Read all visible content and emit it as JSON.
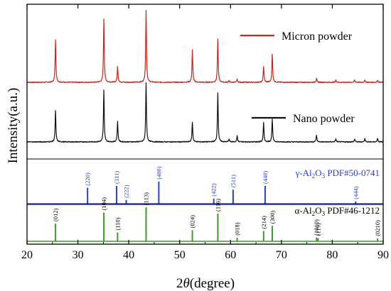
{
  "chart_data": {
    "type": "line",
    "xlabel_prefix": "2",
    "xlabel_theta": "θ",
    "xlabel_unit": "(degree)",
    "ylabel": "Intensity(a.u.)",
    "xlim": [
      20,
      90
    ],
    "xticks": [
      20,
      30,
      40,
      50,
      60,
      70,
      80,
      90
    ],
    "grid": false,
    "series": [
      {
        "name": "Micron powder",
        "color": "#c8281c",
        "baseline": 0.02,
        "peaks": [
          [
            25.6,
            0.58
          ],
          [
            35.1,
            0.86
          ],
          [
            37.8,
            0.22
          ],
          [
            43.4,
            0.98
          ],
          [
            52.5,
            0.44
          ],
          [
            57.5,
            0.58
          ],
          [
            59.7,
            0.02
          ],
          [
            61.3,
            0.04
          ],
          [
            66.5,
            0.22
          ],
          [
            68.2,
            0.38
          ],
          [
            76.9,
            0.05
          ],
          [
            80.7,
            0.03
          ],
          [
            84.4,
            0.03
          ],
          [
            86.4,
            0.03
          ],
          [
            88.9,
            0.03
          ]
        ]
      },
      {
        "name": "Nano powder",
        "color": "#111111",
        "baseline": 0.02,
        "peaks": [
          [
            25.6,
            0.42
          ],
          [
            35.1,
            0.7
          ],
          [
            37.8,
            0.28
          ],
          [
            43.4,
            0.8
          ],
          [
            52.5,
            0.27
          ],
          [
            57.5,
            0.66
          ],
          [
            59.7,
            0.04
          ],
          [
            61.3,
            0.08
          ],
          [
            66.5,
            0.26
          ],
          [
            68.2,
            0.31
          ],
          [
            76.9,
            0.09
          ],
          [
            80.7,
            0.04
          ],
          [
            84.4,
            0.04
          ],
          [
            86.4,
            0.05
          ],
          [
            88.9,
            0.05
          ]
        ]
      }
    ],
    "references": [
      {
        "name_prefix": "γ-Al",
        "name_sub1": "2",
        "name_mid": "O",
        "name_sub2": "3",
        "name_suffix": " PDF#50-0741",
        "color": "#2a3fd4",
        "lines": [
          {
            "x": 31.9,
            "h": 0.45,
            "label": "(220)"
          },
          {
            "x": 37.6,
            "h": 0.5,
            "label": "(311)"
          },
          {
            "x": 39.5,
            "h": 0.12,
            "label": "(222)"
          },
          {
            "x": 45.9,
            "h": 0.62,
            "label": "(400)"
          },
          {
            "x": 56.7,
            "h": 0.16,
            "label": "(422)"
          },
          {
            "x": 60.5,
            "h": 0.4,
            "label": "(511)"
          },
          {
            "x": 66.8,
            "h": 0.5,
            "label": "(440)"
          },
          {
            "x": 84.6,
            "h": 0.08,
            "label": "(444)"
          }
        ]
      },
      {
        "name_prefix": "α-Al",
        "name_sub1": "2",
        "name_mid": "O",
        "name_sub2": "3",
        "name_suffix": " PDF#46-1212",
        "color": "#3e9a2a",
        "lines": [
          {
            "x": 25.6,
            "h": 0.48,
            "label": "(012)"
          },
          {
            "x": 35.1,
            "h": 0.78,
            "label": "(104)"
          },
          {
            "x": 37.8,
            "h": 0.24,
            "label": "(110)"
          },
          {
            "x": 43.4,
            "h": 0.92,
            "label": "(113)"
          },
          {
            "x": 52.5,
            "h": 0.3,
            "label": "(024)"
          },
          {
            "x": 57.5,
            "h": 0.75,
            "label": "(116)"
          },
          {
            "x": 61.3,
            "h": 0.1,
            "label": "(018)"
          },
          {
            "x": 66.5,
            "h": 0.28,
            "label": "(214)"
          },
          {
            "x": 68.2,
            "h": 0.42,
            "label": "(300)"
          },
          {
            "x": 76.9,
            "h": 0.1,
            "label": "(1010)"
          },
          {
            "x": 77.2,
            "h": 0.09,
            "label": "(119)"
          },
          {
            "x": 88.9,
            "h": 0.08,
            "label": "(0210)"
          }
        ]
      }
    ]
  }
}
